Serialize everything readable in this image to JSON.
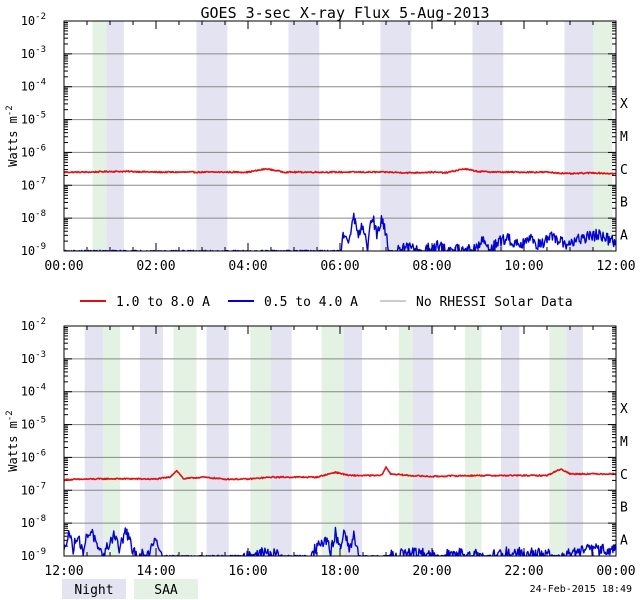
{
  "title": "GOES 3-sec X-ray Flux    5-Aug-2013",
  "footer_timestamp": "24-Feb-2015 18:49",
  "colors": {
    "long_channel": "#e01010",
    "short_channel": "#0000dd",
    "no_rhessi": "#999999",
    "night_band": "#e3e3f1",
    "saa_band": "#e3f2e3",
    "grid": "#888888",
    "axis": "#000000"
  },
  "legend": {
    "items": [
      {
        "label": "1.0 to 8.0 A",
        "color": "#e01010"
      },
      {
        "label": "0.5 to 4.0 A",
        "color": "#0000dd"
      },
      {
        "label": "No RHESSI Solar Data",
        "color": "#999999"
      }
    ]
  },
  "band_key": {
    "night_label": "Night",
    "saa_label": "SAA"
  },
  "chart_data": [
    {
      "type": "line",
      "ylabel": "Watts m",
      "ylabel_superscript": "-2",
      "yscale": "log",
      "ylim": [
        1e-09,
        0.01
      ],
      "y_ticks": [
        {
          "mant": "10",
          "exp": "-2"
        },
        {
          "mant": "10",
          "exp": "-3"
        },
        {
          "mant": "10",
          "exp": "-4"
        },
        {
          "mant": "10",
          "exp": "-5"
        },
        {
          "mant": "10",
          "exp": "-6"
        },
        {
          "mant": "10",
          "exp": "-7"
        },
        {
          "mant": "10",
          "exp": "-8"
        },
        {
          "mant": "10",
          "exp": "-9"
        }
      ],
      "flare_classes": [
        "X",
        "M",
        "C",
        "B",
        "A"
      ],
      "xlim_hours": [
        0,
        12
      ],
      "x_tick_labels": [
        "00:00",
        "02:00",
        "04:00",
        "06:00",
        "08:00",
        "10:00",
        "12:00"
      ],
      "night_bands_hours": [
        [
          0.92,
          1.3
        ],
        [
          2.88,
          3.55
        ],
        [
          4.88,
          5.55
        ],
        [
          6.88,
          7.55
        ],
        [
          8.88,
          9.55
        ],
        [
          10.88,
          11.5
        ]
      ],
      "saa_bands_hours": [
        [
          0.62,
          0.92
        ],
        [
          11.5,
          11.92
        ]
      ],
      "series": [
        {
          "name": "1.0 to 8.0 A",
          "log_x": [
            0,
            0.5,
            1,
            1.5,
            2,
            2.5,
            3,
            3.5,
            4,
            4.4,
            4.8,
            5.2,
            5.8,
            6.2,
            7,
            7.5,
            8,
            8.3,
            8.7,
            9,
            9.5,
            10,
            10.5,
            11,
            11.5,
            12
          ],
          "log_y": [
            -6.6,
            -6.6,
            -6.58,
            -6.58,
            -6.6,
            -6.6,
            -6.6,
            -6.6,
            -6.6,
            -6.5,
            -6.6,
            -6.6,
            -6.6,
            -6.6,
            -6.6,
            -6.62,
            -6.6,
            -6.62,
            -6.5,
            -6.58,
            -6.6,
            -6.6,
            -6.6,
            -6.65,
            -6.62,
            -6.65
          ]
        },
        {
          "name": "0.5 to 4.0 A",
          "log_x": [
            0,
            6.0,
            6.1,
            6.2,
            6.3,
            6.4,
            6.5,
            6.6,
            6.7,
            6.8,
            6.9,
            7.0,
            7.05,
            7.2,
            7.5,
            7.8,
            8.1,
            8.3,
            8.6,
            8.9,
            9.1,
            9.3,
            9.6,
            9.9,
            10.1,
            10.3,
            10.6,
            10.9,
            11.1,
            11.3,
            11.6,
            11.9,
            12
          ],
          "log_y": [
            -9.0,
            -9.0,
            -8.4,
            -8.8,
            -7.9,
            -8.6,
            -8.2,
            -8.9,
            -7.9,
            -8.5,
            -8.1,
            -8.4,
            -9.0,
            -9.0,
            -8.9,
            -9.0,
            -8.8,
            -9.0,
            -8.9,
            -9.0,
            -8.7,
            -8.9,
            -8.6,
            -8.8,
            -8.6,
            -8.8,
            -8.6,
            -8.8,
            -8.7,
            -8.6,
            -8.5,
            -8.7,
            -8.7
          ]
        }
      ]
    },
    {
      "type": "line",
      "ylabel": "Watts m",
      "ylabel_superscript": "-2",
      "yscale": "log",
      "ylim": [
        1e-09,
        0.01
      ],
      "y_ticks": [
        {
          "mant": "10",
          "exp": "-2"
        },
        {
          "mant": "10",
          "exp": "-3"
        },
        {
          "mant": "10",
          "exp": "-4"
        },
        {
          "mant": "10",
          "exp": "-5"
        },
        {
          "mant": "10",
          "exp": "-6"
        },
        {
          "mant": "10",
          "exp": "-7"
        },
        {
          "mant": "10",
          "exp": "-8"
        },
        {
          "mant": "10",
          "exp": "-9"
        }
      ],
      "flare_classes": [
        "X",
        "M",
        "C",
        "B",
        "A"
      ],
      "xlim_hours": [
        12,
        24
      ],
      "x_tick_labels": [
        "12:00",
        "14:00",
        "16:00",
        "18:00",
        "20:00",
        "22:00",
        "00:00"
      ],
      "night_bands_hours": [
        [
          12.45,
          12.85
        ],
        [
          13.65,
          14.15
        ],
        [
          15.1,
          15.58
        ],
        [
          16.5,
          16.95
        ],
        [
          18.08,
          18.48
        ],
        [
          19.58,
          20.03
        ],
        [
          21.5,
          21.9
        ],
        [
          22.92,
          23.28
        ]
      ],
      "saa_bands_hours": [
        [
          12.85,
          13.22
        ],
        [
          14.38,
          14.88
        ],
        [
          16.05,
          16.5
        ],
        [
          17.6,
          18.08
        ],
        [
          19.28,
          19.58
        ],
        [
          20.72,
          21.08
        ],
        [
          22.55,
          22.92
        ]
      ],
      "series": [
        {
          "name": "1.0 to 8.0 A",
          "log_x": [
            12,
            12.5,
            13,
            13.5,
            14,
            14.3,
            14.45,
            14.6,
            15,
            15.5,
            16,
            16.5,
            17,
            17.5,
            17.9,
            18.2,
            18.5,
            18.9,
            19.0,
            19.1,
            19.5,
            20,
            20.5,
            21,
            21.5,
            22,
            22.5,
            22.8,
            23,
            23.5,
            24
          ],
          "log_y": [
            -6.68,
            -6.66,
            -6.65,
            -6.65,
            -6.66,
            -6.6,
            -6.4,
            -6.65,
            -6.6,
            -6.66,
            -6.66,
            -6.6,
            -6.6,
            -6.6,
            -6.45,
            -6.55,
            -6.55,
            -6.55,
            -6.3,
            -6.5,
            -6.55,
            -6.58,
            -6.56,
            -6.55,
            -6.55,
            -6.55,
            -6.55,
            -6.35,
            -6.5,
            -6.5,
            -6.5
          ]
        },
        {
          "name": "0.5 to 4.0 A",
          "log_x": [
            12,
            12.1,
            12.2,
            12.3,
            12.4,
            12.5,
            12.6,
            12.75,
            12.85,
            13.1,
            13.2,
            13.35,
            13.5,
            13.8,
            14.0,
            14.1,
            14.2,
            15.8,
            16.3,
            16.8,
            17.3,
            17.7,
            17.8,
            17.9,
            18.0,
            18.1,
            18.2,
            18.3,
            18.4,
            19.0,
            19.5,
            20.2,
            20.8,
            21.2,
            21.6,
            22.2,
            22.7,
            23.1,
            23.4,
            23.7,
            24
          ],
          "log_y": [
            -8.9,
            -8.2,
            -8.8,
            -8.3,
            -8.9,
            -8.4,
            -8.2,
            -8.9,
            -9.0,
            -8.3,
            -8.8,
            -8.2,
            -8.9,
            -9.0,
            -8.4,
            -8.9,
            -9.0,
            -9.0,
            -8.9,
            -9.0,
            -9.0,
            -8.5,
            -8.9,
            -8.3,
            -8.8,
            -8.2,
            -8.9,
            -8.4,
            -9.0,
            -9.0,
            -8.9,
            -9.0,
            -8.9,
            -9.0,
            -8.9,
            -8.9,
            -9.0,
            -8.9,
            -8.8,
            -8.8,
            -8.8
          ]
        }
      ]
    }
  ]
}
